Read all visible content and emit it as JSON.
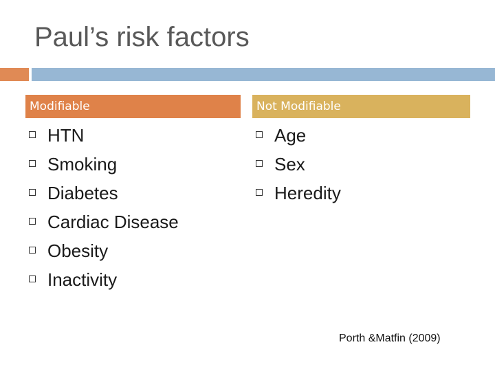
{
  "slide": {
    "title": "Paul’s risk factors",
    "citation": "Porth &Matfin (2009)"
  },
  "columns": {
    "modifiable": {
      "header": "Modifiable",
      "items": [
        "HTN",
        "Smoking",
        "Diabetes",
        "Cardiac Disease",
        "Obesity",
        "Inactivity"
      ]
    },
    "not_modifiable": {
      "header": "Not Modifiable",
      "items": [
        "Age",
        "Sex",
        "Heredity"
      ]
    }
  },
  "colors": {
    "title_text": "#595959",
    "accent_orange": "#e08a55",
    "accent_blue": "#97b7d4",
    "modifiable_header": "#df8249",
    "not_modifiable_header": "#d9b25d"
  },
  "icons": {
    "bullet": "square-bullet-icon"
  }
}
